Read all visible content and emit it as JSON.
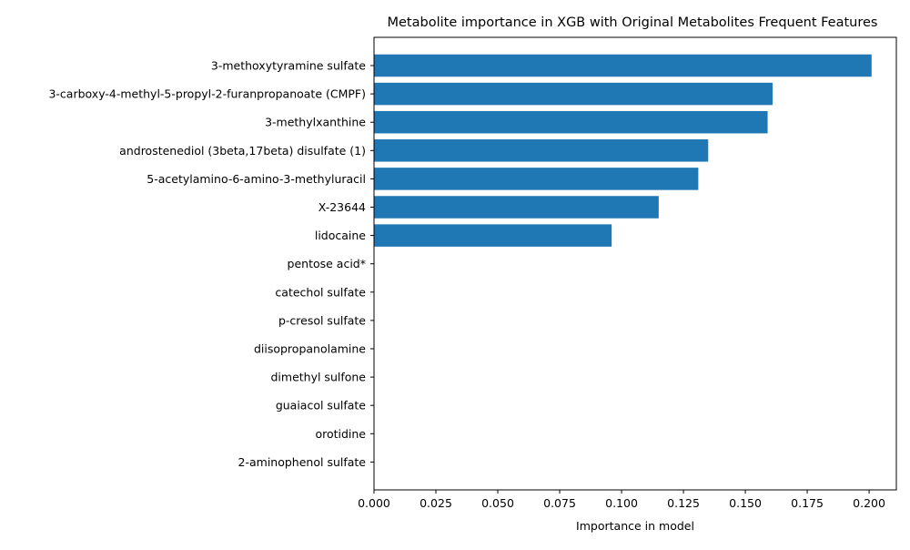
{
  "chart_data": {
    "type": "bar",
    "orientation": "horizontal",
    "title": "Metabolite importance in XGB with Original Metabolites Frequent Features",
    "xlabel": "Importance in model",
    "ylabel": "",
    "xlim": [
      0,
      0.211
    ],
    "xticks": [
      "0.000",
      "0.025",
      "0.050",
      "0.075",
      "0.100",
      "0.125",
      "0.150",
      "0.175",
      "0.200"
    ],
    "grid": false,
    "bar_color": "#1f77b4",
    "categories": [
      "3-methoxytyramine sulfate",
      "3-carboxy-4-methyl-5-propyl-2-furanpropanoate (CMPF)",
      "3-methylxanthine",
      "androstenediol (3beta,17beta) disulfate (1)",
      "5-acetylamino-6-amino-3-methyluracil",
      "X-23644",
      "lidocaine",
      "pentose acid*",
      "catechol sulfate",
      "p-cresol sulfate",
      "diisopropanolamine",
      "dimethyl sulfone",
      "guaiacol sulfate",
      "orotidine",
      "2-aminophenol sulfate"
    ],
    "values": [
      0.201,
      0.161,
      0.159,
      0.135,
      0.131,
      0.115,
      0.096,
      0,
      0,
      0,
      0,
      0,
      0,
      0,
      0
    ]
  }
}
